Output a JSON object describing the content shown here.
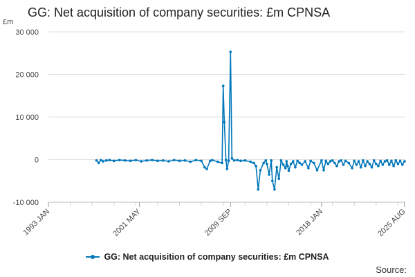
{
  "chart_data": {
    "type": "line",
    "title": "GG: Net acquisition of company securities: £m CPNSA",
    "ylabel": "£m",
    "xlabel": "",
    "ylim": [
      -10000,
      30000
    ],
    "yticks": [
      -10000,
      0,
      10000,
      20000,
      30000
    ],
    "ytick_labels": [
      "-10 000",
      "0",
      "10 000",
      "20 000",
      "30 000"
    ],
    "xlim": [
      1993.0,
      2025.67
    ],
    "xticks": [
      1993.0,
      2001.33,
      2009.67,
      2018.0,
      2025.58
    ],
    "xtick_labels": [
      "1993 JAN",
      "2001 MAY",
      "2009 SEP",
      "2018 JAN",
      "2025 AUG"
    ],
    "grid": "horizontal",
    "legend_position": "bottom",
    "series": [
      {
        "name": "GG: Net acquisition of company securities: £m CPNSA",
        "color": "#0077bb",
        "x": [
          1997.4,
          1997.6,
          1997.8,
          1998.0,
          1998.3,
          1998.6,
          1999.0,
          1999.5,
          2000.0,
          2000.5,
          2001.0,
          2001.5,
          2002.0,
          2002.5,
          2003.0,
          2003.5,
          2004.0,
          2004.5,
          2005.0,
          2005.5,
          2006.0,
          2006.5,
          2007.0,
          2007.3,
          2007.5,
          2007.8,
          2008.0,
          2008.5,
          2008.9,
          2009.0,
          2009.1,
          2009.25,
          2009.35,
          2009.5,
          2009.67,
          2009.8,
          2010.0,
          2010.3,
          2010.6,
          2011.0,
          2011.5,
          2011.8,
          2012.0,
          2012.2,
          2012.4,
          2012.7,
          2012.9,
          2013.0,
          2013.2,
          2013.4,
          2013.5,
          2013.7,
          2013.9,
          2014.1,
          2014.3,
          2014.5,
          2014.7,
          2014.8,
          2014.9,
          2015.0,
          2015.2,
          2015.4,
          2015.6,
          2015.8,
          2016.0,
          2016.2,
          2016.5,
          2016.8,
          2017.0,
          2017.3,
          2017.6,
          2018.0,
          2018.2,
          2018.4,
          2018.6,
          2018.8,
          2019.0,
          2019.2,
          2019.4,
          2019.6,
          2019.8,
          2020.0,
          2020.2,
          2020.5,
          2020.8,
          2021.0,
          2021.2,
          2021.4,
          2021.6,
          2021.8,
          2022.0,
          2022.2,
          2022.4,
          2022.6,
          2022.8,
          2023.0,
          2023.2,
          2023.4,
          2023.6,
          2023.8,
          2024.0,
          2024.2,
          2024.4,
          2024.6,
          2024.8,
          2025.0,
          2025.2,
          2025.4,
          2025.6
        ],
        "values": [
          -200,
          -800,
          -100,
          -400,
          -200,
          -100,
          -300,
          -100,
          -200,
          -300,
          -100,
          -400,
          -200,
          -100,
          -300,
          -200,
          -400,
          -100,
          -300,
          -200,
          -500,
          -100,
          -300,
          -1800,
          -2200,
          -300,
          -100,
          -500,
          -800,
          17300,
          8800,
          -100,
          -2200,
          -300,
          25300,
          300,
          -200,
          -100,
          -300,
          -200,
          -500,
          -800,
          -1500,
          -7000,
          -2500,
          -800,
          -200,
          -1000,
          -3500,
          -200,
          -5000,
          -7000,
          -1800,
          -4500,
          -200,
          -1200,
          -2000,
          -400,
          -1500,
          -2600,
          -1000,
          -400,
          -1800,
          -300,
          -800,
          -1200,
          -400,
          -2000,
          -300,
          -800,
          -2500,
          -200,
          -2500,
          -300,
          -1000,
          -400,
          -200,
          -800,
          -1500,
          -400,
          -200,
          -1200,
          -300,
          -800,
          -2000,
          -300,
          -1200,
          -400,
          -1800,
          -200,
          -1500,
          -400,
          -1000,
          -1800,
          -200,
          -1000,
          -1500,
          -300,
          -1200,
          -400,
          -200,
          -1200,
          -300,
          -1500,
          -200,
          -1000,
          -300,
          -1200,
          -400
        ]
      }
    ]
  },
  "source_label": "Source:"
}
